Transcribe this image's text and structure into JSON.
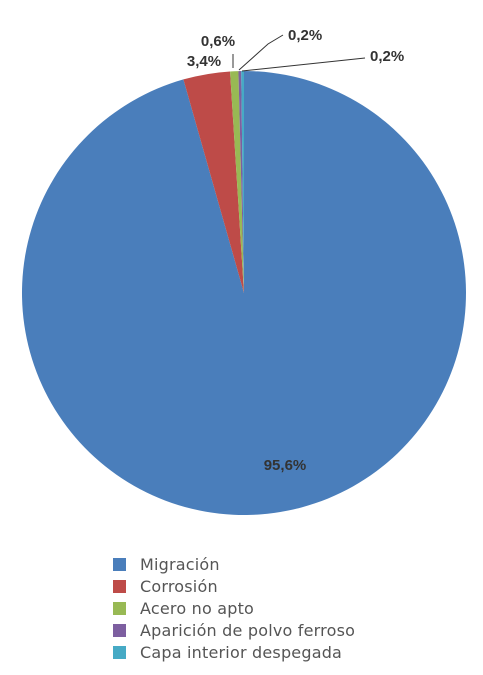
{
  "chart_data": {
    "type": "pie",
    "categories": [
      "Migración",
      "Corrosión",
      "Acero no apto",
      "Aparición de polvo ferroso",
      "Capa interior despegada"
    ],
    "values": [
      95.6,
      3.4,
      0.6,
      0.2,
      0.2
    ],
    "data_labels": [
      "95,6%",
      "3,4%",
      "0,6%",
      "0,2%",
      "0,2%"
    ],
    "colors": [
      "#4a7ebb",
      "#be4b48",
      "#98b954",
      "#7d5fa0",
      "#46aac5"
    ],
    "title": "",
    "legend_position": "bottom"
  }
}
